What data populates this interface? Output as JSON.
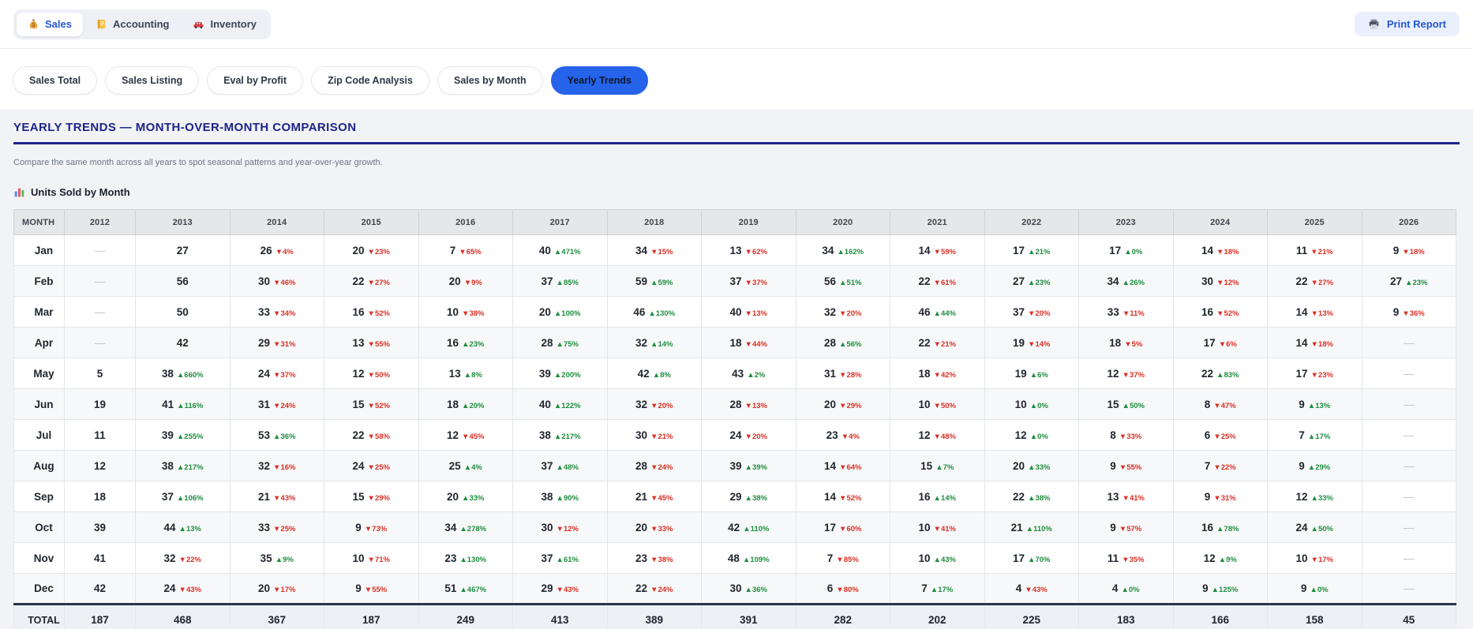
{
  "top_nav": {
    "tabs": [
      {
        "label": "Sales",
        "icon": "money-bag-icon",
        "active": true
      },
      {
        "label": "Accounting",
        "icon": "ledger-icon",
        "active": false
      },
      {
        "label": "Inventory",
        "icon": "car-icon",
        "active": false
      }
    ],
    "print_label": "Print Report",
    "print_icon": "printer-icon"
  },
  "sub_nav": {
    "items": [
      "Sales Total",
      "Sales Listing",
      "Eval by Profit",
      "Zip Code Analysis",
      "Sales by Month",
      "Yearly Trends"
    ],
    "active": "Yearly Trends"
  },
  "page": {
    "title": "YEARLY TRENDS — MONTH-OVER-MONTH COMPARISON",
    "subtitle": "Compare the same month across all years to spot seasonal patterns and year-over-year growth.",
    "section_title": "Units Sold by Month",
    "section_icon": "bar-chart-icon"
  },
  "colors": {
    "accent_blue": "#2563eb",
    "title_navy": "#1c2488",
    "up_green": "#1e8e3e",
    "down_red": "#d93025"
  },
  "chart_data": {
    "type": "table",
    "title": "Units Sold by Month",
    "columns": [
      "MONTH",
      "2012",
      "2013",
      "2014",
      "2015",
      "2016",
      "2017",
      "2018",
      "2019",
      "2020",
      "2021",
      "2022",
      "2023",
      "2024",
      "2025",
      "2026"
    ],
    "rows": [
      {
        "month": "Jan",
        "cells": [
          "—",
          "27",
          "26 ▼4%",
          "20 ▼23%",
          "7 ▼65%",
          "40 ▲471%",
          "34 ▼15%",
          "13 ▼62%",
          "34 ▲162%",
          "14 ▼59%",
          "17 ▲21%",
          "17 ▲0%",
          "14 ▼18%",
          "11 ▼21%",
          "9 ▼18%"
        ]
      },
      {
        "month": "Feb",
        "cells": [
          "—",
          "56",
          "30 ▼46%",
          "22 ▼27%",
          "20 ▼9%",
          "37 ▲85%",
          "59 ▲59%",
          "37 ▼37%",
          "56 ▲51%",
          "22 ▼61%",
          "27 ▲23%",
          "34 ▲26%",
          "30 ▼12%",
          "22 ▼27%",
          "27 ▲23%"
        ]
      },
      {
        "month": "Mar",
        "cells": [
          "—",
          "50",
          "33 ▼34%",
          "16 ▼52%",
          "10 ▼38%",
          "20 ▲100%",
          "46 ▲130%",
          "40 ▼13%",
          "32 ▼20%",
          "46 ▲44%",
          "37 ▼20%",
          "33 ▼11%",
          "16 ▼52%",
          "14 ▼13%",
          "9 ▼36%"
        ]
      },
      {
        "month": "Apr",
        "cells": [
          "—",
          "42",
          "29 ▼31%",
          "13 ▼55%",
          "16 ▲23%",
          "28 ▲75%",
          "32 ▲14%",
          "18 ▼44%",
          "28 ▲56%",
          "22 ▼21%",
          "19 ▼14%",
          "18 ▼5%",
          "17 ▼6%",
          "14 ▼18%",
          "—"
        ]
      },
      {
        "month": "May",
        "cells": [
          "5",
          "38 ▲660%",
          "24 ▼37%",
          "12 ▼50%",
          "13 ▲8%",
          "39 ▲200%",
          "42 ▲8%",
          "43 ▲2%",
          "31 ▼28%",
          "18 ▼42%",
          "19 ▲6%",
          "12 ▼37%",
          "22 ▲83%",
          "17 ▼23%",
          "—"
        ]
      },
      {
        "month": "Jun",
        "cells": [
          "19",
          "41 ▲116%",
          "31 ▼24%",
          "15 ▼52%",
          "18 ▲20%",
          "40 ▲122%",
          "32 ▼20%",
          "28 ▼13%",
          "20 ▼29%",
          "10 ▼50%",
          "10 ▲0%",
          "15 ▲50%",
          "8 ▼47%",
          "9 ▲13%",
          "—"
        ]
      },
      {
        "month": "Jul",
        "cells": [
          "11",
          "39 ▲255%",
          "53 ▲36%",
          "22 ▼58%",
          "12 ▼45%",
          "38 ▲217%",
          "30 ▼21%",
          "24 ▼20%",
          "23 ▼4%",
          "12 ▼48%",
          "12 ▲0%",
          "8 ▼33%",
          "6 ▼25%",
          "7 ▲17%",
          "—"
        ]
      },
      {
        "month": "Aug",
        "cells": [
          "12",
          "38 ▲217%",
          "32 ▼16%",
          "24 ▼25%",
          "25 ▲4%",
          "37 ▲48%",
          "28 ▼24%",
          "39 ▲39%",
          "14 ▼64%",
          "15 ▲7%",
          "20 ▲33%",
          "9 ▼55%",
          "7 ▼22%",
          "9 ▲29%",
          "—"
        ]
      },
      {
        "month": "Sep",
        "cells": [
          "18",
          "37 ▲106%",
          "21 ▼43%",
          "15 ▼29%",
          "20 ▲33%",
          "38 ▲90%",
          "21 ▼45%",
          "29 ▲38%",
          "14 ▼52%",
          "16 ▲14%",
          "22 ▲38%",
          "13 ▼41%",
          "9 ▼31%",
          "12 ▲33%",
          "—"
        ]
      },
      {
        "month": "Oct",
        "cells": [
          "39",
          "44 ▲13%",
          "33 ▼25%",
          "9 ▼73%",
          "34 ▲278%",
          "30 ▼12%",
          "20 ▼33%",
          "42 ▲110%",
          "17 ▼60%",
          "10 ▼41%",
          "21 ▲110%",
          "9 ▼57%",
          "16 ▲78%",
          "24 ▲50%",
          "—"
        ]
      },
      {
        "month": "Nov",
        "cells": [
          "41",
          "32 ▼22%",
          "35 ▲9%",
          "10 ▼71%",
          "23 ▲130%",
          "37 ▲61%",
          "23 ▼38%",
          "48 ▲109%",
          "7 ▼85%",
          "10 ▲43%",
          "17 ▲70%",
          "11 ▼35%",
          "12 ▲9%",
          "10 ▼17%",
          "—"
        ]
      },
      {
        "month": "Dec",
        "cells": [
          "42",
          "24 ▼43%",
          "20 ▼17%",
          "9 ▼55%",
          "51 ▲467%",
          "29 ▼43%",
          "22 ▼24%",
          "30 ▲36%",
          "6 ▼80%",
          "7 ▲17%",
          "4 ▼43%",
          "4 ▲0%",
          "9 ▲125%",
          "9 ▲0%",
          "—"
        ]
      }
    ],
    "total_label": "TOTAL",
    "totals": [
      "187",
      "468",
      "367",
      "187",
      "249",
      "413",
      "389",
      "391",
      "282",
      "202",
      "225",
      "183",
      "166",
      "158",
      "45"
    ]
  }
}
